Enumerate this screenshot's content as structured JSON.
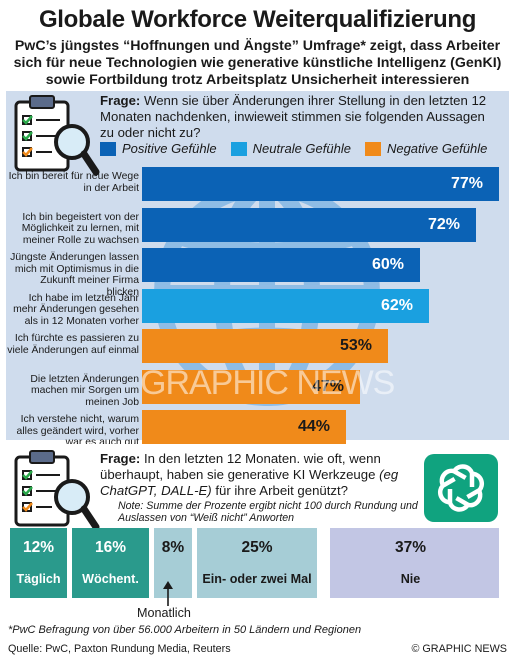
{
  "header": {
    "title": "Globale Workforce Weiterqualifizierung",
    "subtitle": "PwC’s jüngstes “Hoffnungen und Ängste” Umfrage* zeigt, dass Arbeiter sich für neue Technologien wie generative künstliche Intelligenz (GenKI) sowie Fortbildung trotz Arbeitsplatz Unsicherheit interessieren"
  },
  "question1": {
    "label": "Frage:",
    "text": "Wenn sie über Änderungen ihrer Stellung in den letzten 12 Monaten nachdenken, inwieweit stimmen sie folgenden Aussagen zu oder nicht zu?"
  },
  "question2": {
    "label": "Frage:",
    "text_a": "In den letzten 12 Monaten. wie oft, wenn überhaupt, haben sie generative KI Werkzeuge",
    "text_b": "(eg ChatGPT, DALL-E)",
    "text_c": "für ihre Arbeit genützt?",
    "note": "Note: Summe der Prozente ergibt nicht 100 durch Rundung und Auslassen von “Weiß nicht” Anworten"
  },
  "colors": {
    "positive": "#0b62b5",
    "neutral": "#1aa0e0",
    "negative": "#f08a1a",
    "segment_dark": "#2a9a8c",
    "segment_light": "#a6cdd6",
    "segment_nie": "#c2c6e4"
  },
  "icons": [
    "clipboard-checklist-icon",
    "magnifier-icon",
    "globe-icon",
    "chatgpt-logo-icon"
  ],
  "watermark": "GRAPHIC NEWS",
  "chart_data": [
    {
      "type": "bar",
      "orientation": "horizontal",
      "legend": [
        "Positive Gefühle",
        "Neutrale Gefühle",
        "Negative Gefühle"
      ],
      "categories": [
        "Ich bin bereit für neue Wege in der Arbeit",
        "Ich bin begeistert von der Möglichkeit zu lernen, mit meiner Rolle zu wachsen",
        "Jüngste Änderungen lassen mich mit Optimismus in die Zukunft meiner Firma blicken",
        "Ich habe im letzten Jahr mehr Änderungen gesehen als in 12 Monaten vorher",
        "Ich fürchte es passieren zu viele Änderungen auf einmal",
        "Die letzten Änderungen machen mir Sorgen um meinen Job",
        "Ich verstehe nicht, warum alles geändert wird, vorher war es auch gut"
      ],
      "values": [
        77,
        72,
        60,
        62,
        53,
        47,
        44
      ],
      "value_labels": [
        "77%",
        "72%",
        "60%",
        "62%",
        "53%",
        "47%",
        "44%"
      ],
      "sentiment": [
        "positive",
        "positive",
        "positive",
        "neutral",
        "negative",
        "negative",
        "negative"
      ],
      "xlim": [
        0,
        100
      ]
    },
    {
      "type": "bar",
      "orientation": "stacked-horizontal",
      "categories": [
        "Täglich",
        "Wöchent.",
        "Monatlich",
        "Ein- oder zwei Mal",
        "Nie"
      ],
      "values": [
        12,
        16,
        8,
        25,
        37
      ],
      "value_labels": [
        "12%",
        "16%",
        "8%",
        "25%",
        "37%"
      ]
    }
  ],
  "footer": {
    "footnote": "*PwC Befragung von über 56.000 Arbeitern in 50 Ländern und Regionen",
    "source": "Quelle: PwC, Paxton Rundung Media, Reuters",
    "credit": "© GRAPHIC NEWS"
  }
}
